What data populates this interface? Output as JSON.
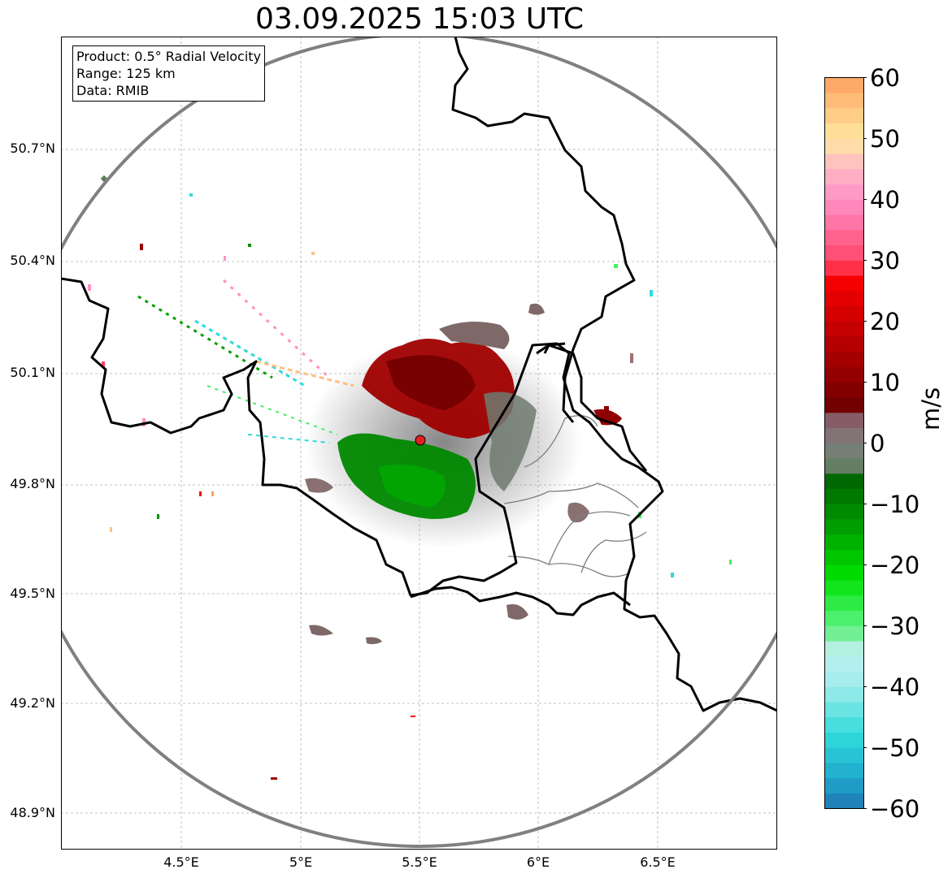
{
  "title": "03.09.2025 15:03 UTC",
  "info": {
    "product": "Product: 0.5° Radial Velocity",
    "range": "Range: 125 km",
    "data": "Data: RMIB"
  },
  "axes": {
    "lat_labels": [
      "50.7°N",
      "50.4°N",
      "50.1°N",
      "49.8°N",
      "49.5°N",
      "49.2°N",
      "48.9°N"
    ],
    "lon_labels": [
      "4.5°E",
      "5°E",
      "5.5°E",
      "6°E",
      "6.5°E"
    ]
  },
  "colorbar": {
    "label": "m/s",
    "ticks": [
      "60",
      "50",
      "40",
      "30",
      "20",
      "10",
      "0",
      "−10",
      "−20",
      "−30",
      "−40",
      "−50",
      "−60"
    ],
    "range": [
      -60,
      60
    ],
    "stops": [
      {
        "v": -60,
        "c": "#1f77b4"
      },
      {
        "v": -55,
        "c": "#1fa8cc"
      },
      {
        "v": -48,
        "c": "#2fdada"
      },
      {
        "v": -40,
        "c": "#a0ecec"
      },
      {
        "v": -34,
        "c": "#c0f0f0"
      },
      {
        "v": -33,
        "c": "#90f0b0"
      },
      {
        "v": -28,
        "c": "#40f060"
      },
      {
        "v": -22,
        "c": "#00e000"
      },
      {
        "v": -12,
        "c": "#009000"
      },
      {
        "v": -6,
        "c": "#006600"
      },
      {
        "v": -5,
        "c": "#5a7d5a"
      },
      {
        "v": 0,
        "c": "#7f7f7f"
      },
      {
        "v": 5,
        "c": "#8a5060"
      },
      {
        "v": 6,
        "c": "#700000"
      },
      {
        "v": 18,
        "c": "#c00000"
      },
      {
        "v": 28,
        "c": "#ff0000"
      },
      {
        "v": 29,
        "c": "#ff4060"
      },
      {
        "v": 40,
        "c": "#ff90c8"
      },
      {
        "v": 46,
        "c": "#ffc0c0"
      },
      {
        "v": 50,
        "c": "#ffe8a0"
      },
      {
        "v": 60,
        "c": "#ffa060"
      }
    ]
  },
  "colors": {
    "approaching": "#009000",
    "receding": "#a00000",
    "near_zero": "#7f7070",
    "range_ring": "#808080",
    "border": "#000000",
    "province_border": "#808080",
    "radar_site": "#e02020"
  }
}
